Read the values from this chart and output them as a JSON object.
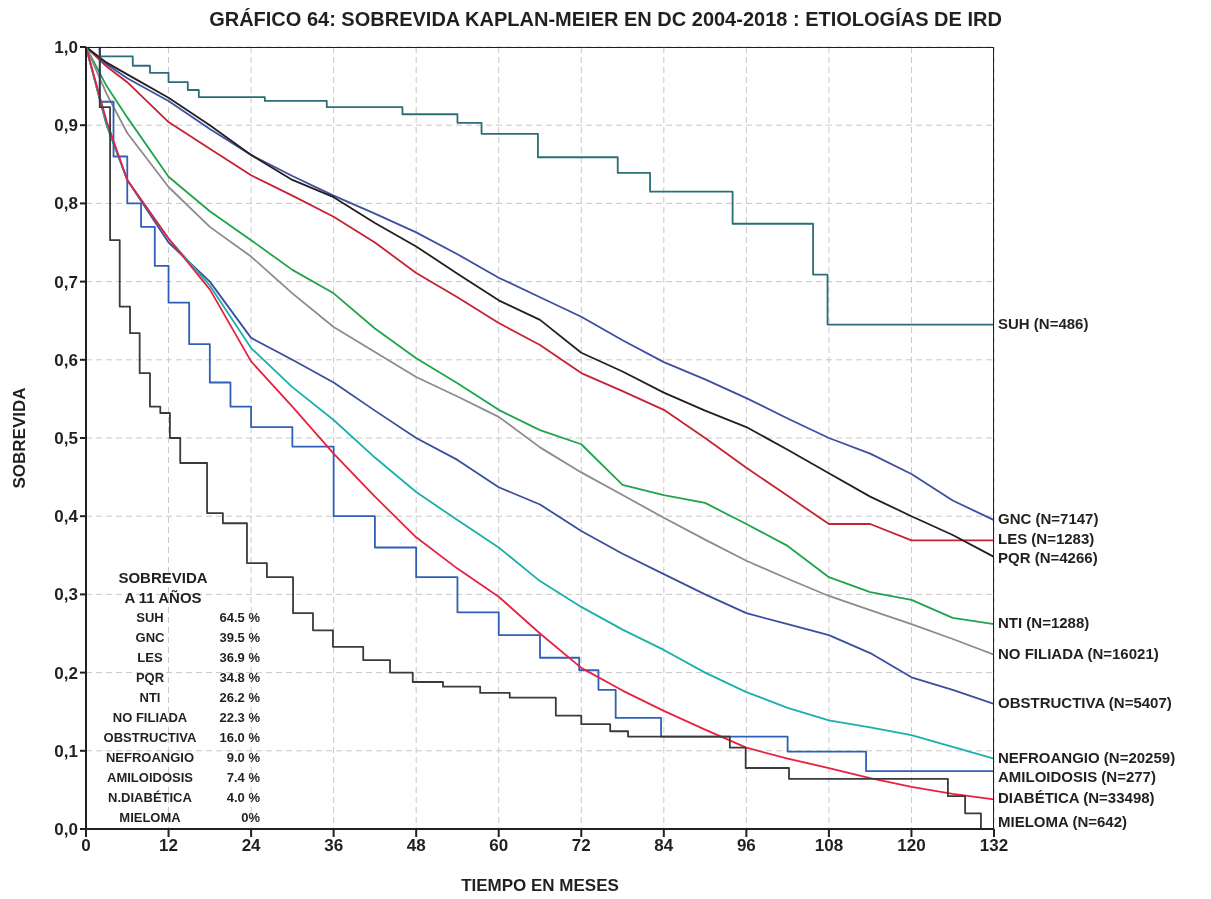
{
  "chart_data": {
    "type": "line",
    "title": "GRÁFICO 64: SOBREVIDA KAPLAN-MEIER EN DC 2004-2018 : ETIOLOGÍAS DE IRD",
    "xlabel": "TIEMPO EN MESES",
    "ylabel": "SOBREVIDA",
    "x": [
      0,
      3,
      6,
      12,
      18,
      24,
      30,
      36,
      42,
      48,
      54,
      60,
      66,
      72,
      78,
      84,
      90,
      96,
      102,
      108,
      114,
      120,
      126,
      132
    ],
    "series": [
      {
        "name": "SUH (N=486)",
        "color": "#2b6e78",
        "type": "step",
        "x": [
          0,
          2,
          6.8,
          9.3,
          12,
          14.8,
          16.4,
          26,
          35,
          46,
          54,
          57.5,
          65.7,
          77.3,
          82,
          94,
          105.7,
          107.8,
          132
        ],
        "values": [
          1,
          0.988,
          0.976,
          0.967,
          0.955,
          0.945,
          0.936,
          0.931,
          0.923,
          0.914,
          0.903,
          0.889,
          0.859,
          0.839,
          0.815,
          0.774,
          0.709,
          0.645,
          0.645
        ]
      },
      {
        "name": "GNC (N=7147)",
        "color": "#3d4fa3",
        "values": [
          1,
          0.978,
          0.96,
          0.931,
          0.895,
          0.862,
          0.835,
          0.81,
          0.787,
          0.763,
          0.735,
          0.705,
          0.68,
          0.655,
          0.625,
          0.597,
          0.575,
          0.551,
          0.525,
          0.5,
          0.48,
          0.454,
          0.42,
          0.395
        ]
      },
      {
        "name": "LES (N=1283)",
        "color": "#c62232",
        "values": [
          1,
          0.975,
          0.955,
          0.904,
          0.87,
          0.836,
          0.81,
          0.783,
          0.75,
          0.711,
          0.68,
          0.647,
          0.619,
          0.583,
          0.56,
          0.536,
          0.5,
          0.462,
          0.426,
          0.39,
          0.39,
          0.369,
          0.369,
          0.369
        ]
      },
      {
        "name": "PQR (N=4266)",
        "color": "#231f20",
        "values": [
          1,
          0.98,
          0.965,
          0.935,
          0.9,
          0.862,
          0.83,
          0.808,
          0.775,
          0.745,
          0.71,
          0.676,
          0.651,
          0.609,
          0.585,
          0.558,
          0.535,
          0.514,
          0.485,
          0.455,
          0.425,
          0.4,
          0.376,
          0.348
        ]
      },
      {
        "name": "NTI (N=1288)",
        "color": "#1fa44b",
        "values": [
          1,
          0.95,
          0.91,
          0.834,
          0.79,
          0.753,
          0.715,
          0.685,
          0.64,
          0.602,
          0.57,
          0.536,
          0.51,
          0.492,
          0.44,
          0.427,
          0.417,
          0.39,
          0.362,
          0.322,
          0.303,
          0.293,
          0.27,
          0.262
        ]
      },
      {
        "name": "NO FILIADA (N=16021)",
        "color": "#8c8c8c",
        "values": [
          1,
          0.94,
          0.89,
          0.821,
          0.77,
          0.732,
          0.685,
          0.642,
          0.61,
          0.578,
          0.553,
          0.527,
          0.488,
          0.456,
          0.427,
          0.398,
          0.37,
          0.343,
          0.32,
          0.298,
          0.28,
          0.262,
          0.243,
          0.223
        ]
      },
      {
        "name": "OBSTRUCTIVA (N=5407)",
        "color": "#3a4ea0",
        "values": [
          1,
          0.9,
          0.83,
          0.75,
          0.7,
          0.628,
          0.6,
          0.571,
          0.535,
          0.5,
          0.472,
          0.437,
          0.415,
          0.381,
          0.352,
          0.326,
          0.3,
          0.276,
          0.262,
          0.248,
          0.225,
          0.194,
          0.178,
          0.16
        ]
      },
      {
        "name": "NEFROANGIO (N=20259)",
        "color": "#1ab0aa",
        "values": [
          1,
          0.9,
          0.83,
          0.755,
          0.695,
          0.615,
          0.565,
          0.523,
          0.475,
          0.431,
          0.395,
          0.36,
          0.317,
          0.284,
          0.255,
          0.229,
          0.2,
          0.175,
          0.155,
          0.139,
          0.13,
          0.12,
          0.105,
          0.09
        ]
      },
      {
        "name": "AMILOIDOSIS (N=277)",
        "color": "#2f5fb8",
        "type": "step",
        "x": [
          0,
          2,
          4,
          6,
          8,
          10,
          12,
          15,
          18,
          21,
          24,
          30,
          36,
          42,
          48,
          54,
          60,
          66,
          71.7,
          74.5,
          77,
          83.6,
          102,
          113.4,
          132
        ],
        "values": [
          1,
          0.93,
          0.86,
          0.8,
          0.77,
          0.72,
          0.673,
          0.62,
          0.571,
          0.54,
          0.514,
          0.489,
          0.4,
          0.36,
          0.322,
          0.277,
          0.248,
          0.219,
          0.203,
          0.178,
          0.142,
          0.118,
          0.099,
          0.074,
          0.074
        ]
      },
      {
        "name": "DIABÉTICA (N=33498)",
        "color": "#e8213f",
        "values": [
          1,
          0.905,
          0.83,
          0.755,
          0.69,
          0.598,
          0.54,
          0.48,
          0.425,
          0.373,
          0.333,
          0.297,
          0.25,
          0.206,
          0.177,
          0.151,
          0.127,
          0.104,
          0.09,
          0.078,
          0.065,
          0.054,
          0.045,
          0.038
        ]
      },
      {
        "name": "MIELOMA (N=642)",
        "color": "#3a3a3a",
        "type": "step",
        "x": [
          0,
          2,
          3.5,
          4.9,
          6.4,
          7.8,
          9.3,
          10.8,
          12.2,
          13.7,
          17.6,
          19.9,
          23.4,
          26.3,
          30.1,
          33,
          35.9,
          40.3,
          44.2,
          47.5,
          51.9,
          57.3,
          61.6,
          68.3,
          72,
          76.2,
          78.8,
          93.6,
          95.9,
          102.2,
          125.3,
          127.8,
          130.1,
          132
        ],
        "values": [
          1,
          0.923,
          0.753,
          0.668,
          0.634,
          0.583,
          0.54,
          0.532,
          0.5,
          0.468,
          0.404,
          0.391,
          0.34,
          0.322,
          0.276,
          0.254,
          0.233,
          0.216,
          0.2,
          0.188,
          0.182,
          0.174,
          0.168,
          0.145,
          0.134,
          0.125,
          0.118,
          0.104,
          0.078,
          0.064,
          0.042,
          0.02,
          0,
          0
        ]
      }
    ],
    "xlim": [
      0,
      132
    ],
    "xticks": [
      0,
      12,
      24,
      36,
      48,
      60,
      72,
      84,
      96,
      108,
      120,
      132
    ],
    "ylim": [
      0,
      1
    ],
    "yticks": [
      {
        "value": 0,
        "label": "0,0"
      },
      {
        "value": 0.1,
        "label": "0,1"
      },
      {
        "value": 0.2,
        "label": "0,2"
      },
      {
        "value": 0.3,
        "label": "0,3"
      },
      {
        "value": 0.4,
        "label": "0,4"
      },
      {
        "value": 0.5,
        "label": "0,5"
      },
      {
        "value": 0.6,
        "label": "0,6"
      },
      {
        "value": 0.7,
        "label": "0,7"
      },
      {
        "value": 0.8,
        "label": "0,8"
      },
      {
        "value": 0.9,
        "label": "0,9"
      },
      {
        "value": 1,
        "label": "1,0"
      }
    ],
    "grid": true,
    "annotations": [
      "SOBREVIDA",
      "A 11 AÑOS",
      "SUH 64.5 %",
      "GNC 39.5 %",
      "LES 36.9 %",
      "PQR 34.8 %",
      "NTI 26.2 %",
      "NO FILIADA 22.3 %",
      "OBSTRUCTIVA 16.0 %",
      "NEFROANGIO 9.0 %",
      "AMILOIDOSIS 7.4 %",
      "N.DIABÉTICA 4.0 %",
      "MIELOMA 0%"
    ]
  }
}
